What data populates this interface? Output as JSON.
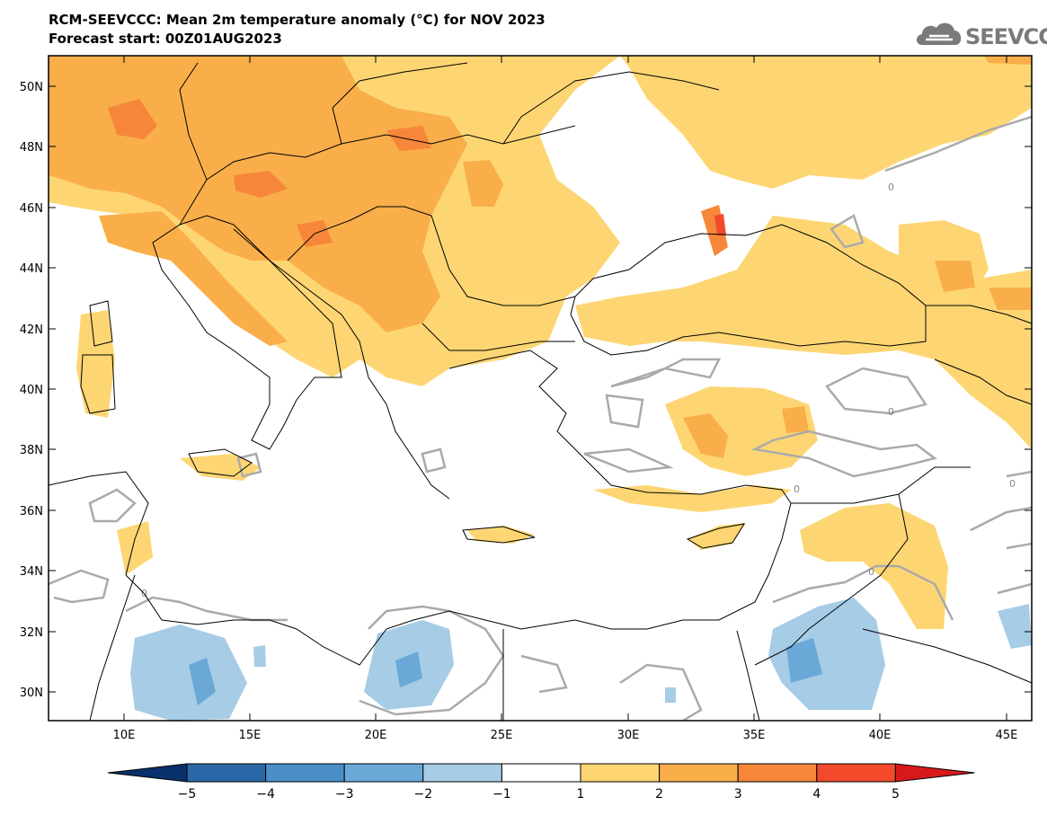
{
  "header": {
    "title": "RCM-SEEVCCC: Mean 2m temperature anomaly (°C) for NOV 2023",
    "subtitle": "Forecast start: 00Z01AUG2023"
  },
  "logo": {
    "text": "SEEVCCC",
    "icon": "cloud-icon"
  },
  "map": {
    "lon_range": [
      7,
      46
    ],
    "lat_range": [
      29,
      51
    ],
    "lat_ticks": [
      "50N",
      "48N",
      "46N",
      "44N",
      "42N",
      "40N",
      "38N",
      "36N",
      "34N",
      "32N",
      "30N"
    ],
    "lon_ticks": [
      "10E",
      "15E",
      "20E",
      "25E",
      "30E",
      "35E",
      "40E",
      "45E"
    ],
    "contour_labels": [
      "0",
      "0",
      "0",
      "0",
      "0",
      "0"
    ]
  },
  "colorbar": {
    "labels": [
      "−5",
      "−4",
      "−3",
      "−2",
      "−1",
      "1",
      "2",
      "3",
      "4",
      "5"
    ],
    "colors": [
      "#08306b",
      "#2a67a6",
      "#4a8fc8",
      "#6aa8d8",
      "#a6cce6",
      "#ffffff",
      "#fdd673",
      "#f9ae4a",
      "#f6873a",
      "#f24a2a",
      "#d7191c"
    ]
  }
}
